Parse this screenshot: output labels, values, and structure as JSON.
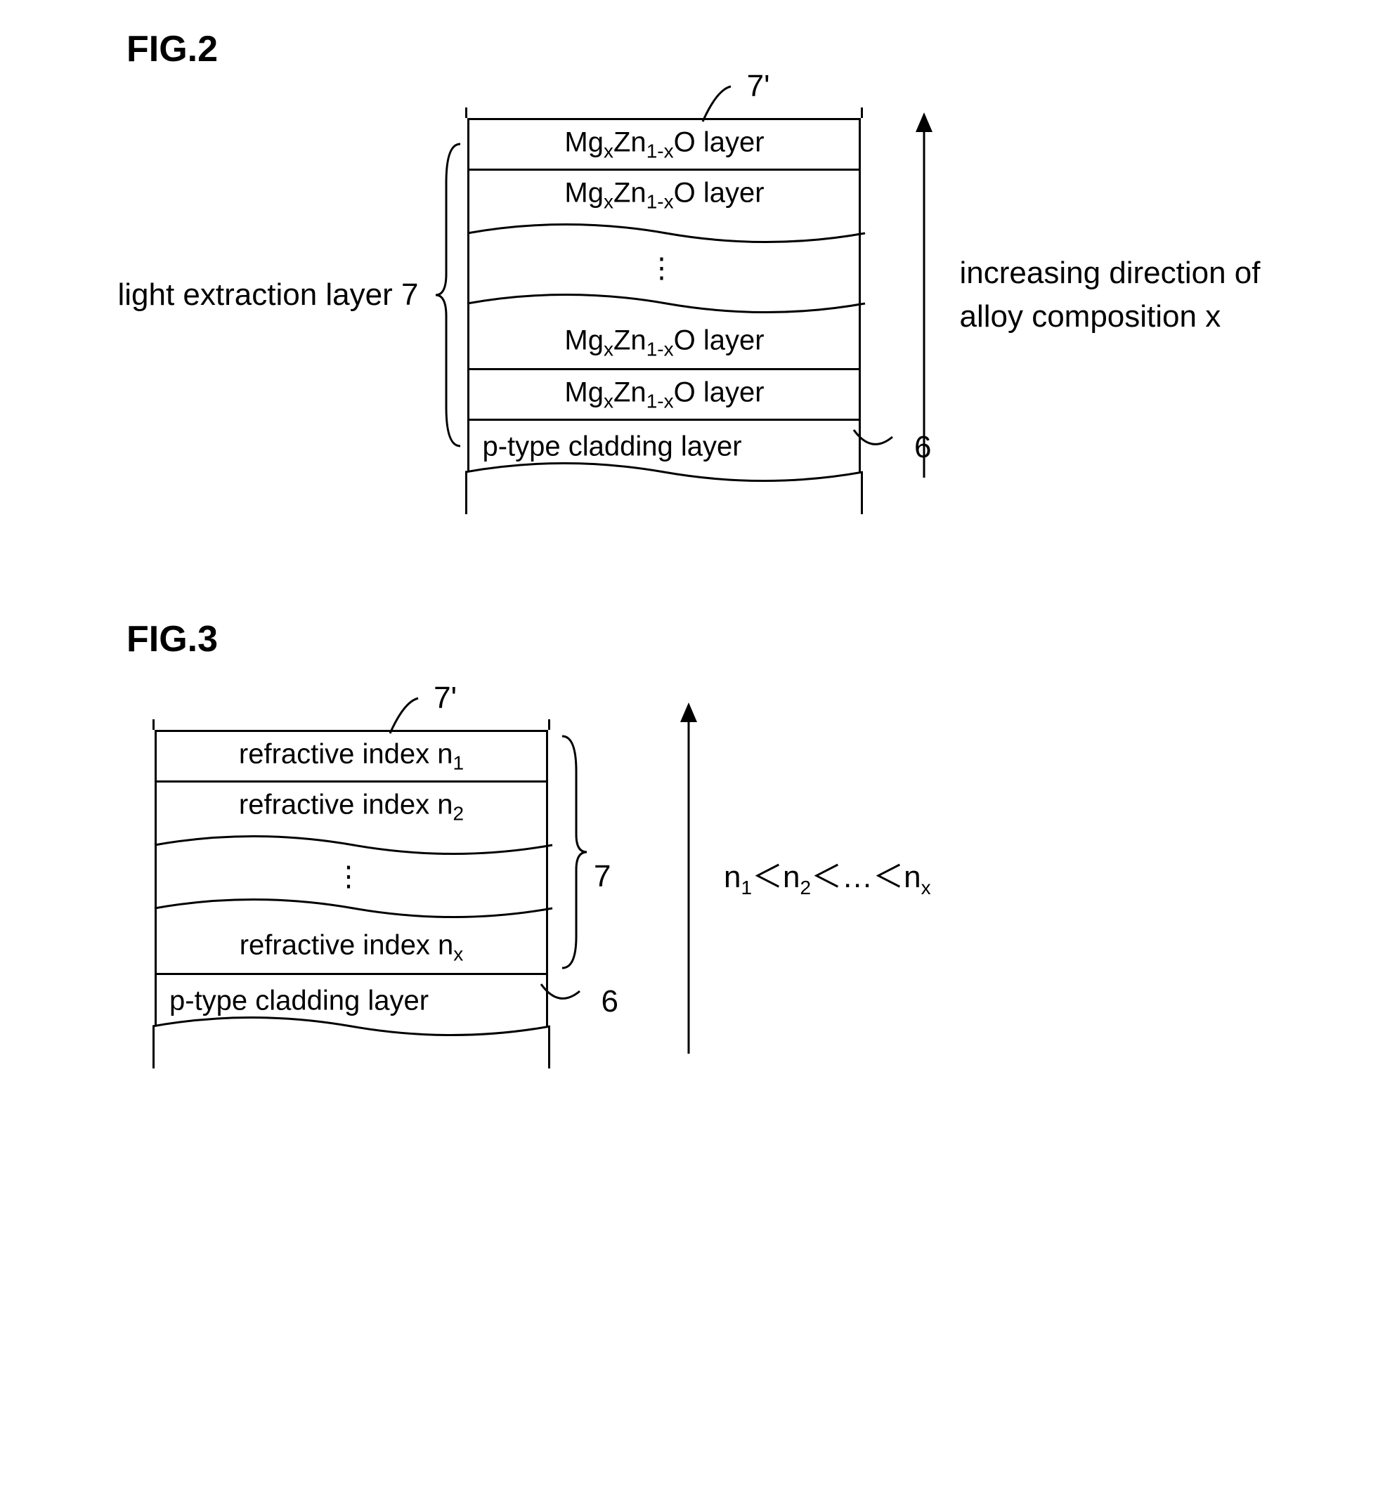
{
  "fig2": {
    "title": "FIG.2",
    "left_label": "light extraction layer 7",
    "layers": {
      "top1": "Mg<sub>x</sub>Zn<sub>1-x</sub>O layer",
      "top2": "Mg<sub>x</sub>Zn<sub>1-x</sub>O layer",
      "dots": "⋮",
      "bot1": "Mg<sub>x</sub>Zn<sub>1-x</sub>O layer",
      "bot2": "Mg<sub>x</sub>Zn<sub>1-x</sub>O layer",
      "clad": "p-type cladding layer"
    },
    "label_7prime": "7'",
    "label_6": "6",
    "right_text_line1": "increasing direction of",
    "right_text_line2": "alloy composition x",
    "arrow_height": 520,
    "brace_height": 440,
    "colors": {
      "stroke": "#000000",
      "bg": "#ffffff"
    }
  },
  "fig3": {
    "title": "FIG.3",
    "layers": {
      "top1": "refractive index n<sub>1</sub>",
      "top2": "refractive index n<sub>2</sub>",
      "dots": "⋮",
      "bot1": "refractive index n<sub>x</sub>",
      "clad": "p-type cladding layer"
    },
    "label_7prime": "7'",
    "label_7": "7",
    "label_6": "6",
    "right_text": "n<sub>1</sub>＜n<sub>2</sub>＜…＜n<sub>x</sub>",
    "arrow_height": 500,
    "brace_height": 340,
    "colors": {
      "stroke": "#000000",
      "bg": "#ffffff"
    }
  }
}
